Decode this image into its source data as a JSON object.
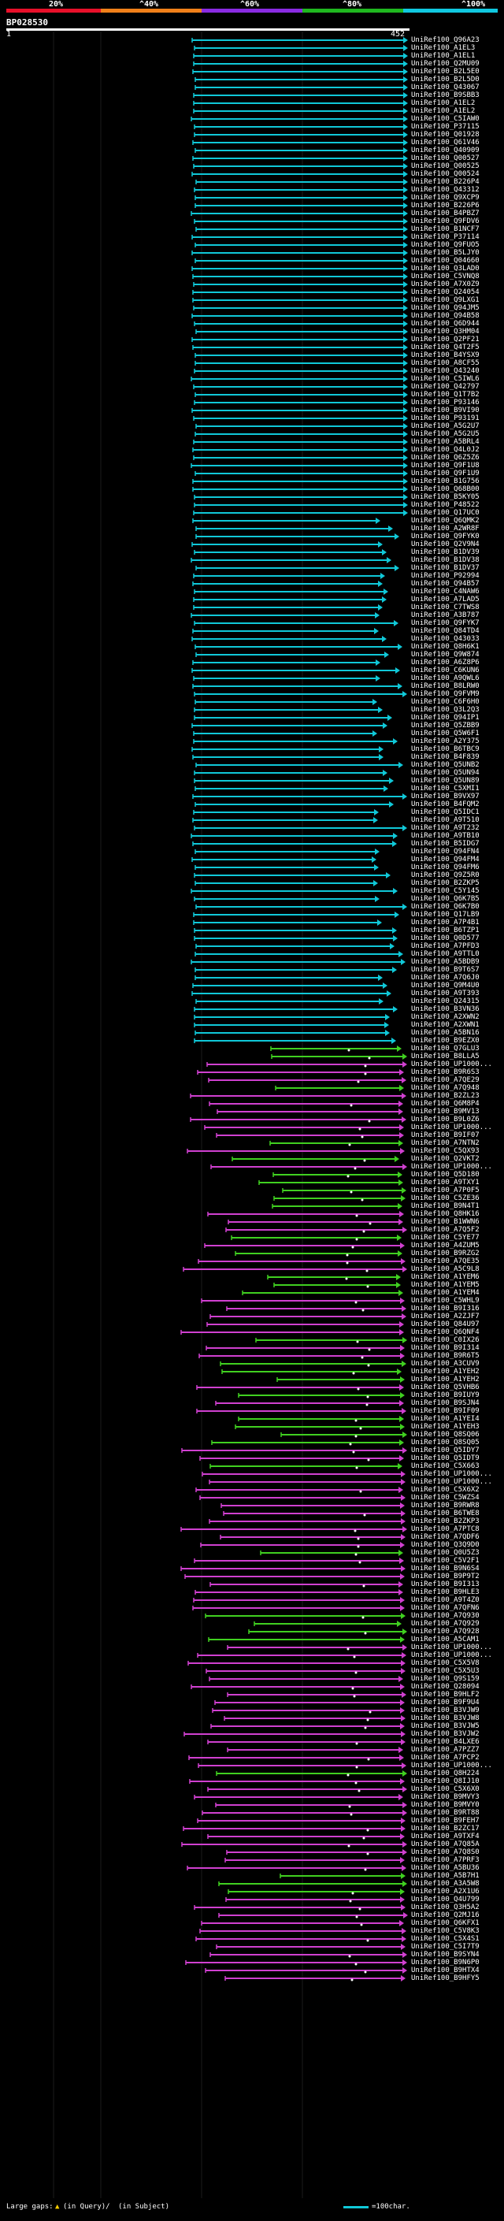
{
  "header": {
    "scale_labels": [
      "20%",
      "^40%",
      "^60%",
      "^80%",
      "^100%"
    ],
    "scale_colors": [
      "#e8102a",
      "#f0801a",
      "#8a2be2",
      "#1fb81f",
      "#10c8e0"
    ],
    "query_name": "BP028530",
    "query_start": "1",
    "query_end": "452"
  },
  "colors": {
    "cyan": "#10c8d8",
    "magenta": "#d040d0",
    "green": "#40d020",
    "dot": "#ffffff"
  },
  "hits": [
    {
      "label": "UniRef100_Q96A23",
      "c": "cyan"
    },
    {
      "label": "UniRef100_A1EL3",
      "c": "cyan"
    },
    {
      "label": "UniRef100_A1EL1",
      "c": "cyan"
    },
    {
      "label": "UniRef100_Q2MU09",
      "c": "cyan"
    },
    {
      "label": "UniRef100_B2L5E0",
      "c": "cyan"
    },
    {
      "label": "UniRef100_B2L5D0",
      "c": "cyan"
    },
    {
      "label": "UniRef100_Q43067",
      "c": "cyan"
    },
    {
      "label": "UniRef100_B9SBB3",
      "c": "cyan"
    },
    {
      "label": "UniRef100_A1EL2",
      "c": "cyan"
    },
    {
      "label": "UniRef100_A1EL2",
      "c": "cyan"
    },
    {
      "label": "UniRef100_C5IAW0",
      "c": "cyan"
    },
    {
      "label": "UniRef100_P37115",
      "c": "cyan"
    },
    {
      "label": "UniRef100_Q01928",
      "c": "cyan"
    },
    {
      "label": "UniRef100_Q61V46",
      "c": "cyan"
    },
    {
      "label": "UniRef100_Q40909",
      "c": "cyan"
    },
    {
      "label": "UniRef100_Q00527",
      "c": "cyan"
    },
    {
      "label": "UniRef100_Q00525",
      "c": "cyan"
    },
    {
      "label": "UniRef100_Q00524",
      "c": "cyan"
    },
    {
      "label": "UniRef100_B226P4",
      "c": "cyan"
    },
    {
      "label": "UniRef100_Q43312",
      "c": "cyan"
    },
    {
      "label": "UniRef100_Q9XCP9",
      "c": "cyan"
    },
    {
      "label": "UniRef100_B226P6",
      "c": "cyan"
    },
    {
      "label": "UniRef100_B4PBZ7",
      "c": "cyan"
    },
    {
      "label": "UniRef100_Q9FDV6",
      "c": "cyan"
    },
    {
      "label": "UniRef100_B1NCF7",
      "c": "cyan"
    },
    {
      "label": "UniRef100_P37114",
      "c": "cyan"
    },
    {
      "label": "UniRef100_Q9FUO5",
      "c": "cyan"
    },
    {
      "label": "UniRef100_B5LJY0",
      "c": "cyan"
    },
    {
      "label": "UniRef100_Q04660",
      "c": "cyan"
    },
    {
      "label": "UniRef100_Q3LAD0",
      "c": "cyan"
    },
    {
      "label": "UniRef100_C5VNQ8",
      "c": "cyan"
    },
    {
      "label": "UniRef100_A7X0Z9",
      "c": "cyan"
    },
    {
      "label": "UniRef100_Q24054",
      "c": "cyan"
    },
    {
      "label": "UniRef100_Q9LXG1",
      "c": "cyan"
    },
    {
      "label": "UniRef100_Q94JM5",
      "c": "cyan"
    },
    {
      "label": "UniRef100_Q94B58",
      "c": "cyan"
    },
    {
      "label": "UniRef100_Q6D944",
      "c": "cyan"
    },
    {
      "label": "UniRef100_Q3HM04",
      "c": "cyan"
    },
    {
      "label": "UniRef100_Q2PF21",
      "c": "cyan"
    },
    {
      "label": "UniRef100_Q4T2F5",
      "c": "cyan"
    },
    {
      "label": "UniRef100_B4YSX9",
      "c": "cyan"
    },
    {
      "label": "UniRef100_A8CF55",
      "c": "cyan"
    },
    {
      "label": "UniRef100_Q43240",
      "c": "cyan"
    },
    {
      "label": "UniRef100_C5IWL6",
      "c": "cyan"
    },
    {
      "label": "UniRef100_Q42797",
      "c": "cyan"
    },
    {
      "label": "UniRef100_Q1T7B2",
      "c": "cyan"
    },
    {
      "label": "UniRef100_P93146",
      "c": "cyan"
    },
    {
      "label": "UniRef100_B9VI90",
      "c": "cyan"
    },
    {
      "label": "UniRef100_P93191",
      "c": "cyan"
    },
    {
      "label": "UniRef100_A5G2U7",
      "c": "cyan"
    },
    {
      "label": "UniRef100_A5G2U5",
      "c": "cyan"
    },
    {
      "label": "UniRef100_A5BRL4",
      "c": "cyan"
    },
    {
      "label": "UniRef100_Q4L0J2",
      "c": "cyan"
    },
    {
      "label": "UniRef100_Q6Z5Z6",
      "c": "cyan"
    },
    {
      "label": "UniRef100_Q9F1U8",
      "c": "cyan"
    },
    {
      "label": "UniRef100_Q9F1U9",
      "c": "cyan"
    },
    {
      "label": "UniRef100_B1G756",
      "c": "cyan"
    },
    {
      "label": "UniRef100_Q68B00",
      "c": "cyan"
    },
    {
      "label": "UniRef100_B5KY05",
      "c": "cyan"
    },
    {
      "label": "UniRef100_P48522",
      "c": "cyan"
    },
    {
      "label": "UniRef100_Q17UC0",
      "c": "cyan"
    },
    {
      "label": "UniRef100_Q6QMK2",
      "c": "cyan"
    },
    {
      "label": "UniRef100_A2WR8F",
      "c": "cyan"
    },
    {
      "label": "UniRef100_Q9FYK0",
      "c": "cyan"
    },
    {
      "label": "UniRef100_Q2V9N4",
      "c": "cyan"
    },
    {
      "label": "UniRef100_B1DV39",
      "c": "cyan"
    },
    {
      "label": "UniRef100_B1DV38",
      "c": "cyan"
    },
    {
      "label": "UniRef100_B1DV37",
      "c": "cyan"
    },
    {
      "label": "UniRef100_P92994",
      "c": "cyan"
    },
    {
      "label": "UniRef100_Q94B57",
      "c": "cyan"
    },
    {
      "label": "UniRef100_C4NAW6",
      "c": "cyan"
    },
    {
      "label": "UniRef100_A7LAD5",
      "c": "cyan"
    },
    {
      "label": "UniRef100_C7TWS8",
      "c": "cyan"
    },
    {
      "label": "UniRef100_A3B787",
      "c": "cyan"
    },
    {
      "label": "UniRef100_Q9FYK7",
      "c": "cyan"
    },
    {
      "label": "UniRef100_Q84TD4",
      "c": "cyan"
    },
    {
      "label": "UniRef100_Q43033",
      "c": "cyan"
    },
    {
      "label": "UniRef100_Q8H6K1",
      "c": "cyan"
    },
    {
      "label": "UniRef100_Q9W874",
      "c": "cyan"
    },
    {
      "label": "UniRef100_A6Z8P6",
      "c": "cyan"
    },
    {
      "label": "UniRef100_C6KUN6",
      "c": "cyan"
    },
    {
      "label": "UniRef100_A9QWL6",
      "c": "cyan"
    },
    {
      "label": "UniRef100_B8LRW0",
      "c": "cyan"
    },
    {
      "label": "UniRef100_Q9FVM9",
      "c": "cyan"
    },
    {
      "label": "UniRef100_C6F6H0",
      "c": "cyan"
    },
    {
      "label": "UniRef100_Q3L2Q3",
      "c": "cyan"
    },
    {
      "label": "UniRef100_Q94IP1",
      "c": "cyan"
    },
    {
      "label": "UniRef100_Q5ZBB9",
      "c": "cyan"
    },
    {
      "label": "UniRef100_Q5W6F1",
      "c": "cyan"
    },
    {
      "label": "UniRef100_A2Y375",
      "c": "cyan"
    },
    {
      "label": "UniRef100_B6TBC9",
      "c": "cyan"
    },
    {
      "label": "UniRef100_B4F839",
      "c": "cyan"
    },
    {
      "label": "UniRef100_Q5UNB2",
      "c": "cyan"
    },
    {
      "label": "UniRef100_Q5UN94",
      "c": "cyan"
    },
    {
      "label": "UniRef100_Q5UN89",
      "c": "cyan"
    },
    {
      "label": "UniRef100_C5XMI1",
      "c": "cyan"
    },
    {
      "label": "UniRef100_B9VX97",
      "c": "cyan"
    },
    {
      "label": "UniRef100_B4FQM2",
      "c": "cyan"
    },
    {
      "label": "UniRef100_Q5IDC1",
      "c": "cyan"
    },
    {
      "label": "UniRef100_A9T510",
      "c": "cyan"
    },
    {
      "label": "UniRef100_A9T232",
      "c": "cyan"
    },
    {
      "label": "UniRef100_A9TB10",
      "c": "cyan"
    },
    {
      "label": "UniRef100_B5IDG7",
      "c": "cyan"
    },
    {
      "label": "UniRef100_Q94FN4",
      "c": "cyan"
    },
    {
      "label": "UniRef100_Q94FM4",
      "c": "cyan"
    },
    {
      "label": "UniRef100_Q94FM6",
      "c": "cyan"
    },
    {
      "label": "UniRef100_Q9Z5R0",
      "c": "cyan"
    },
    {
      "label": "UniRef100_B2ZKP5",
      "c": "cyan"
    },
    {
      "label": "UniRef100_C5Y145",
      "c": "cyan"
    },
    {
      "label": "UniRef100_Q6K7B5",
      "c": "cyan"
    },
    {
      "label": "UniRef100_Q6K7B0",
      "c": "cyan"
    },
    {
      "label": "UniRef100_Q17LB9",
      "c": "cyan"
    },
    {
      "label": "UniRef100_A7P4B1",
      "c": "cyan"
    },
    {
      "label": "UniRef100_B6TZP1",
      "c": "cyan"
    },
    {
      "label": "UniRef100_Q0D577",
      "c": "cyan"
    },
    {
      "label": "UniRef100_A7PFD3",
      "c": "cyan"
    },
    {
      "label": "UniRef100_A9TTL0",
      "c": "cyan"
    },
    {
      "label": "UniRef100_A5BDB9",
      "c": "cyan"
    },
    {
      "label": "UniRef100_B9T6S7",
      "c": "cyan"
    },
    {
      "label": "UniRef100_A7Q6J0",
      "c": "cyan"
    },
    {
      "label": "UniRef100_Q9M4U0",
      "c": "cyan"
    },
    {
      "label": "UniRef100_A9T393",
      "c": "cyan"
    },
    {
      "label": "UniRef100_Q24315",
      "c": "cyan"
    },
    {
      "label": "UniRef100_B3VN36",
      "c": "cyan"
    },
    {
      "label": "UniRef100_A2XWN2",
      "c": "cyan"
    },
    {
      "label": "UniRef100_A2XWN1",
      "c": "cyan"
    },
    {
      "label": "UniRef100_A5BN16",
      "c": "cyan"
    },
    {
      "label": "UniRef100_B9EZX0",
      "c": "cyan"
    },
    {
      "label": "UniRef100_Q7GLU3",
      "c": "green"
    },
    {
      "label": "UniRef100_B8LLA5",
      "c": "green"
    },
    {
      "label": "UniRef100_UP1000...",
      "c": "magenta"
    },
    {
      "label": "UniRef100_B9R6S3",
      "c": "magenta"
    },
    {
      "label": "UniRef100_A7QE29",
      "c": "magenta"
    },
    {
      "label": "UniRef100_A7Q948",
      "c": "green"
    },
    {
      "label": "UniRef100_B2ZL23",
      "c": "magenta"
    },
    {
      "label": "UniRef100_Q6M8P4",
      "c": "magenta"
    },
    {
      "label": "UniRef100_B9MV13",
      "c": "magenta"
    },
    {
      "label": "UniRef100_B9L0Z6",
      "c": "magenta"
    },
    {
      "label": "UniRef100_UP1000...",
      "c": "magenta"
    },
    {
      "label": "UniRef100_B9IF07",
      "c": "magenta"
    },
    {
      "label": "UniRef100_A7NTN2",
      "c": "green"
    },
    {
      "label": "UniRef100_C5QX93",
      "c": "magenta"
    },
    {
      "label": "UniRef100_Q2VKT2",
      "c": "green"
    },
    {
      "label": "UniRef100_UP1000...",
      "c": "magenta"
    },
    {
      "label": "UniRef100_Q5D180",
      "c": "green"
    },
    {
      "label": "UniRef100_A9TXY1",
      "c": "green"
    },
    {
      "label": "UniRef100_A7P0F5",
      "c": "green"
    },
    {
      "label": "UniRef100_C5ZE36",
      "c": "green"
    },
    {
      "label": "UniRef100_B9N4T1",
      "c": "green"
    },
    {
      "label": "UniRef100_Q8HK16",
      "c": "magenta"
    },
    {
      "label": "UniRef100_B1WWN6",
      "c": "magenta"
    },
    {
      "label": "UniRef100_A7Q5F2",
      "c": "magenta"
    },
    {
      "label": "UniRef100_C5YE77",
      "c": "green"
    },
    {
      "label": "UniRef100_A4ZUM5",
      "c": "magenta"
    },
    {
      "label": "UniRef100_B9RZG2",
      "c": "green"
    },
    {
      "label": "UniRef100_A7QE35",
      "c": "magenta"
    },
    {
      "label": "UniRef100_A5C9L8",
      "c": "magenta"
    },
    {
      "label": "UniRef100_A1YEM6",
      "c": "green"
    },
    {
      "label": "UniRef100_A1YEM5",
      "c": "green"
    },
    {
      "label": "UniRef100_A1YEM4",
      "c": "green"
    },
    {
      "label": "UniRef100_C5WHL9",
      "c": "magenta"
    },
    {
      "label": "UniRef100_B9I316",
      "c": "magenta"
    },
    {
      "label": "UniRef100_A2ZJF7",
      "c": "magenta"
    },
    {
      "label": "UniRef100_Q84U97",
      "c": "magenta"
    },
    {
      "label": "UniRef100_Q6QNF4",
      "c": "magenta"
    },
    {
      "label": "UniRef100_C0IX26",
      "c": "green"
    },
    {
      "label": "UniRef100_B9I314",
      "c": "magenta"
    },
    {
      "label": "UniRef100_B9R6T5",
      "c": "magenta"
    },
    {
      "label": "UniRef100_A3CUV9",
      "c": "green"
    },
    {
      "label": "UniRef100_A1YEH2",
      "c": "green"
    },
    {
      "label": "UniRef100_A1YEH2",
      "c": "green"
    },
    {
      "label": "UniRef100_Q5VHB6",
      "c": "magenta"
    },
    {
      "label": "UniRef100_B9IUY9",
      "c": "green"
    },
    {
      "label": "UniRef100_B9SJN4",
      "c": "magenta"
    },
    {
      "label": "UniRef100_B9IF09",
      "c": "magenta"
    },
    {
      "label": "UniRef100_A1YEI4",
      "c": "green"
    },
    {
      "label": "UniRef100_A1YEH3",
      "c": "green"
    },
    {
      "label": "UniRef100_Q8SQ06",
      "c": "green"
    },
    {
      "label": "UniRef100_Q8SQ05",
      "c": "green"
    },
    {
      "label": "UniRef100_Q5IDY7",
      "c": "magenta"
    },
    {
      "label": "UniRef100_Q5IDT9",
      "c": "magenta"
    },
    {
      "label": "UniRef100_C5X663",
      "c": "green"
    },
    {
      "label": "UniRef100_UP1000...",
      "c": "magenta"
    },
    {
      "label": "UniRef100_UP1000...",
      "c": "magenta"
    },
    {
      "label": "UniRef100_C5X6X2",
      "c": "magenta"
    },
    {
      "label": "UniRef100_C5WZS4",
      "c": "magenta"
    },
    {
      "label": "UniRef100_B9RWR8",
      "c": "magenta"
    },
    {
      "label": "UniRef100_B6TWE8",
      "c": "magenta"
    },
    {
      "label": "UniRef100_B2ZKP3",
      "c": "magenta"
    },
    {
      "label": "UniRef100_A7PTC8",
      "c": "magenta"
    },
    {
      "label": "UniRef100_A7QDF6",
      "c": "magenta"
    },
    {
      "label": "UniRef100_Q3Q9D0",
      "c": "magenta"
    },
    {
      "label": "UniRef100_Q0U5Z3",
      "c": "green"
    },
    {
      "label": "UniRef100_C5V2F1",
      "c": "magenta"
    },
    {
      "label": "UniRef100_B9N6S4",
      "c": "magenta"
    },
    {
      "label": "UniRef100_B9P9T2",
      "c": "magenta"
    },
    {
      "label": "UniRef100_B9I313",
      "c": "magenta"
    },
    {
      "label": "UniRef100_B9HLE3",
      "c": "magenta"
    },
    {
      "label": "UniRef100_A9T4Z0",
      "c": "magenta"
    },
    {
      "label": "UniRef100_A7QFN6",
      "c": "magenta"
    },
    {
      "label": "UniRef100_A7Q930",
      "c": "green"
    },
    {
      "label": "UniRef100_A7Q929",
      "c": "green"
    },
    {
      "label": "UniRef100_A7Q928",
      "c": "green"
    },
    {
      "label": "UniRef100_A5CAM1",
      "c": "green"
    },
    {
      "label": "UniRef100_UP1000...",
      "c": "magenta"
    },
    {
      "label": "UniRef100_UP1000...",
      "c": "magenta"
    },
    {
      "label": "UniRef100_C5X5V8",
      "c": "magenta"
    },
    {
      "label": "UniRef100_C5X5U3",
      "c": "magenta"
    },
    {
      "label": "UniRef100_Q9S159",
      "c": "magenta"
    },
    {
      "label": "UniRef100_Q28094",
      "c": "magenta"
    },
    {
      "label": "UniRef100_B9HLF2",
      "c": "magenta"
    },
    {
      "label": "UniRef100_B9F9U4",
      "c": "magenta"
    },
    {
      "label": "UniRef100_B3VJW9",
      "c": "magenta"
    },
    {
      "label": "UniRef100_B3VJW8",
      "c": "magenta"
    },
    {
      "label": "UniRef100_B3VJW5",
      "c": "magenta"
    },
    {
      "label": "UniRef100_B3VJW2",
      "c": "magenta"
    },
    {
      "label": "UniRef100_B4LXE6",
      "c": "magenta"
    },
    {
      "label": "UniRef100_A7PZZ7",
      "c": "magenta"
    },
    {
      "label": "UniRef100_A7PCP2",
      "c": "magenta"
    },
    {
      "label": "UniRef100_UP1000...",
      "c": "magenta"
    },
    {
      "label": "UniRef100_Q8H224",
      "c": "green"
    },
    {
      "label": "UniRef100_Q8IJ10",
      "c": "magenta"
    },
    {
      "label": "UniRef100_C5X6X0",
      "c": "magenta"
    },
    {
      "label": "UniRef100_B9MVY3",
      "c": "magenta"
    },
    {
      "label": "UniRef100_B9MVY0",
      "c": "magenta"
    },
    {
      "label": "UniRef100_B9RT88",
      "c": "magenta"
    },
    {
      "label": "UniRef100_B9FEH7",
      "c": "magenta"
    },
    {
      "label": "UniRef100_B2ZC17",
      "c": "magenta"
    },
    {
      "label": "UniRef100_A9TXF4",
      "c": "magenta"
    },
    {
      "label": "UniRef100_A7Q85A",
      "c": "magenta"
    },
    {
      "label": "UniRef100_A7Q8S0",
      "c": "magenta"
    },
    {
      "label": "UniRef100_A7PRF3",
      "c": "magenta"
    },
    {
      "label": "UniRef100_A5BU36",
      "c": "magenta"
    },
    {
      "label": "UniRef100_A5B7H1",
      "c": "green"
    },
    {
      "label": "UniRef100_A3A5W8",
      "c": "green"
    },
    {
      "label": "UniRef100_A2X1U6",
      "c": "green"
    },
    {
      "label": "UniRef100_Q4U799",
      "c": "magenta"
    },
    {
      "label": "UniRef100_Q3H5A2",
      "c": "magenta"
    },
    {
      "label": "UniRef100_Q2MJ16",
      "c": "magenta"
    },
    {
      "label": "UniRef100_Q6KFX1",
      "c": "magenta"
    },
    {
      "label": "UniRef100_C5V8K3",
      "c": "magenta"
    },
    {
      "label": "UniRef100_C5X4S1",
      "c": "magenta"
    },
    {
      "label": "UniRef100_C5I7T9",
      "c": "magenta"
    },
    {
      "label": "UniRef100_B9SYN4",
      "c": "magenta"
    },
    {
      "label": "UniRef100_B9N6P0",
      "c": "magenta"
    },
    {
      "label": "UniRef100_B9HTX4",
      "c": "magenta"
    },
    {
      "label": "UniRef100_B9HFY5",
      "c": "magenta"
    }
  ],
  "legend": {
    "large_gaps": "Large gaps:",
    "in_query": "(in Query)/",
    "in_subject": "(in Subject)",
    "scale": "=100char."
  }
}
